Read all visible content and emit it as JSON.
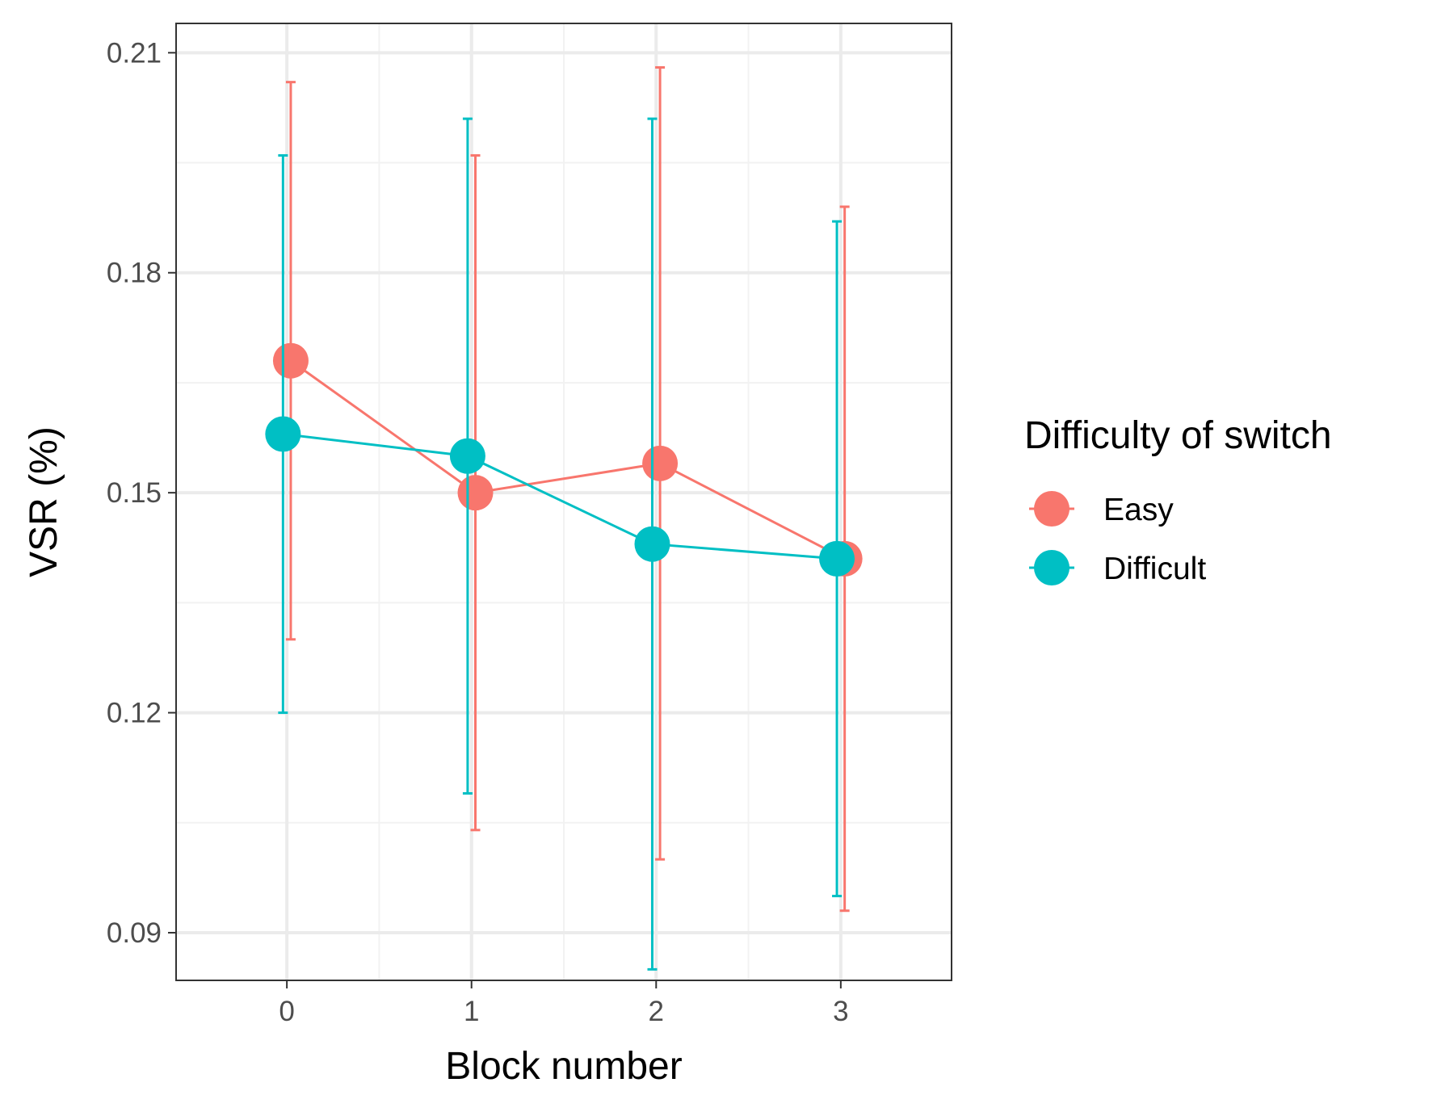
{
  "chart_data": {
    "type": "line",
    "xlabel": "Block number",
    "ylabel": "VSR (%)",
    "x": [
      0,
      1,
      2,
      3
    ],
    "x_ticks": [
      "0",
      "1",
      "2",
      "3"
    ],
    "xlim": [
      -0.6,
      3.6
    ],
    "ylim": [
      0.0835,
      0.214
    ],
    "y_ticks": [
      "0.09",
      "0.12",
      "0.15",
      "0.18",
      "0.21"
    ],
    "y_tick_values": [
      0.09,
      0.12,
      0.15,
      0.18,
      0.21
    ],
    "grid": true,
    "legend": {
      "title": "Difficulty of switch",
      "placement": "right"
    },
    "series": [
      {
        "name": "Easy",
        "color": "#F8766D",
        "values": [
          0.168,
          0.15,
          0.154,
          0.141
        ],
        "error_low": [
          0.13,
          0.104,
          0.1,
          0.093
        ],
        "error_high": [
          0.206,
          0.196,
          0.208,
          0.189
        ]
      },
      {
        "name": "Difficult",
        "color": "#00BFC4",
        "values": [
          0.158,
          0.155,
          0.143,
          0.141
        ],
        "error_low": [
          0.12,
          0.109,
          0.085,
          0.095
        ],
        "error_high": [
          0.196,
          0.201,
          0.201,
          0.187
        ]
      }
    ]
  }
}
